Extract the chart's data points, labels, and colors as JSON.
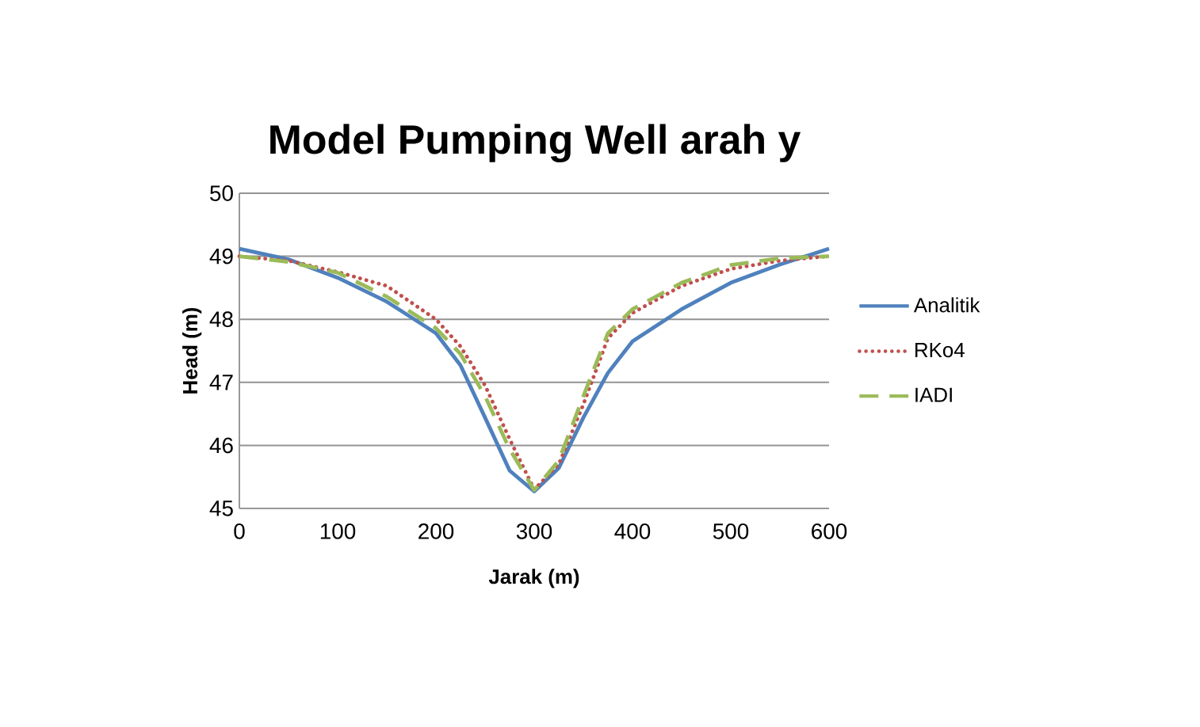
{
  "chart_data": {
    "type": "line",
    "title": "Model Pumping Well arah y",
    "xlabel": "Jarak (m)",
    "ylabel": "Head (m)",
    "xlim": [
      0,
      600
    ],
    "xticks": [
      0,
      100,
      200,
      300,
      400,
      500,
      600
    ],
    "ylim": [
      45,
      50
    ],
    "yticks": [
      45,
      46,
      47,
      48,
      49,
      50
    ],
    "grid": "y",
    "legend": "right",
    "series": [
      {
        "name": "Analitik",
        "color": "#4f81bd",
        "line_style": "solid",
        "x": [
          0,
          50,
          100,
          150,
          200,
          225,
          250,
          275,
          300,
          325,
          350,
          375,
          400,
          450,
          500,
          550,
          600
        ],
        "values": [
          49.12,
          48.95,
          48.66,
          48.28,
          47.78,
          47.27,
          46.44,
          45.6,
          45.27,
          45.64,
          46.44,
          47.15,
          47.65,
          48.16,
          48.58,
          48.87,
          49.12
        ]
      },
      {
        "name": "RKo4",
        "color": "#c0504d",
        "line_style": "dotted",
        "x": [
          0,
          50,
          100,
          150,
          200,
          225,
          250,
          275,
          300,
          325,
          350,
          375,
          400,
          450,
          500,
          550,
          600
        ],
        "values": [
          49.0,
          48.93,
          48.75,
          48.53,
          48.0,
          47.57,
          46.95,
          46.1,
          45.3,
          45.7,
          46.65,
          47.7,
          48.1,
          48.53,
          48.8,
          48.93,
          49.0
        ]
      },
      {
        "name": "IADI",
        "color": "#9bbb59",
        "line_style": "dashed",
        "x": [
          0,
          50,
          100,
          150,
          200,
          225,
          250,
          275,
          300,
          325,
          350,
          375,
          400,
          450,
          500,
          550,
          600
        ],
        "values": [
          49.0,
          48.91,
          48.74,
          48.36,
          47.86,
          47.45,
          46.78,
          45.94,
          45.29,
          45.76,
          46.78,
          47.78,
          48.16,
          48.58,
          48.86,
          48.97,
          49.0
        ]
      }
    ]
  }
}
